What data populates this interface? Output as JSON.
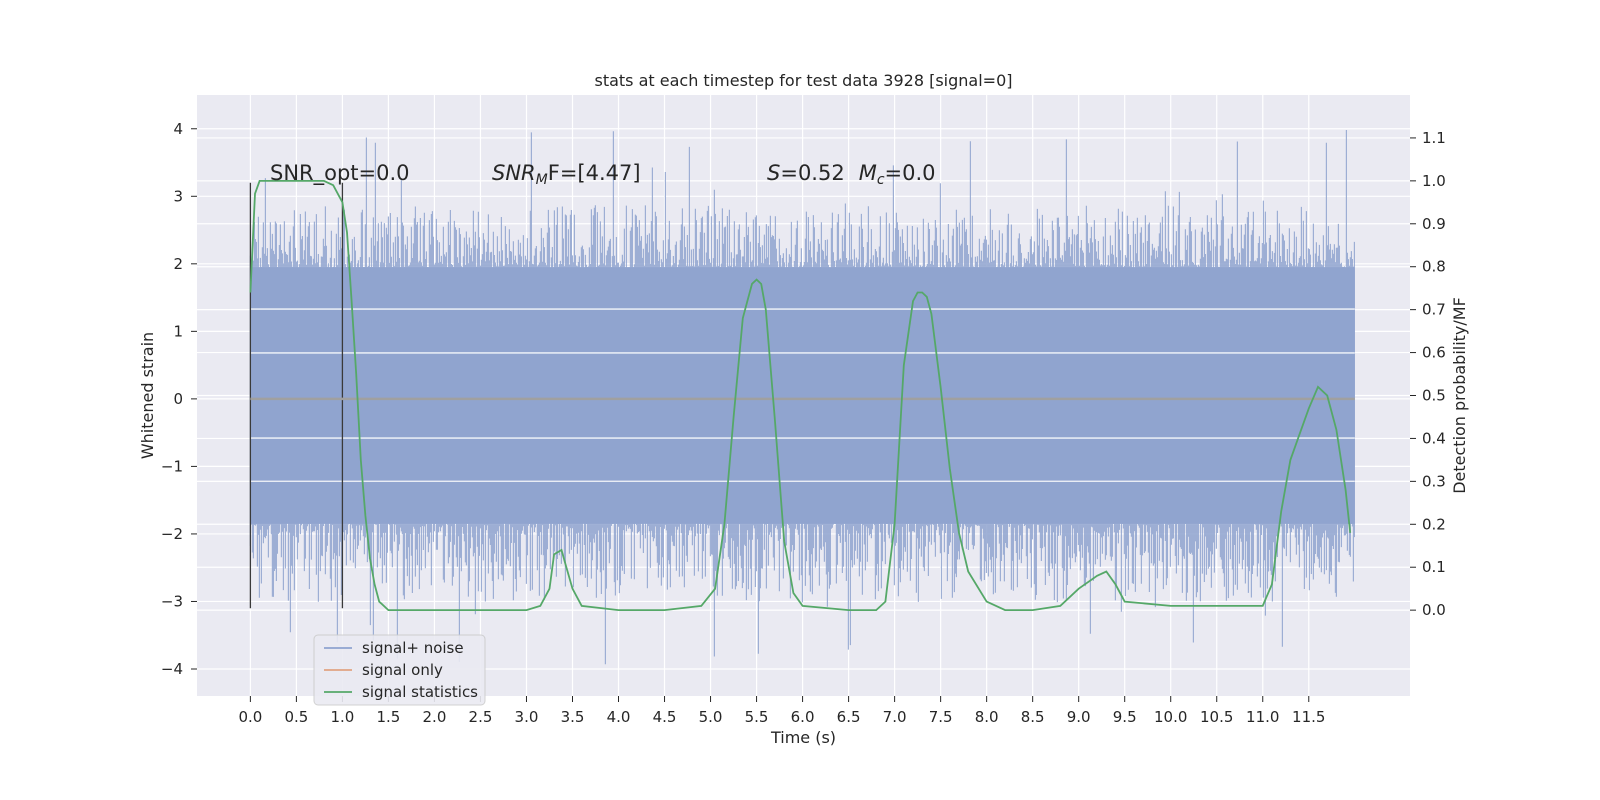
{
  "chart_data": {
    "type": "line",
    "title": "stats at each timestep for test data 3928 [signal=0]",
    "xlabel": "Time (s)",
    "ylabel": "Whitened strain",
    "ylabel_right": "Detection probability/MF",
    "xlim": [
      -0.58,
      12.6
    ],
    "ylim": [
      -4.4,
      4.5
    ],
    "ylim_right": [
      -0.2,
      1.2
    ],
    "x_ticks": [
      0.0,
      0.5,
      1.0,
      1.5,
      2.0,
      2.5,
      3.0,
      3.5,
      4.0,
      4.5,
      5.0,
      5.5,
      6.0,
      6.5,
      7.0,
      7.5,
      8.0,
      8.5,
      9.0,
      9.5,
      10.0,
      10.5,
      11.0,
      11.5
    ],
    "x_tick_labels": [
      "0.0",
      "0.5",
      "1.0",
      "1.5",
      "2.0",
      "2.5",
      "3.0",
      "3.5",
      "4.0",
      "4.5",
      "5.0",
      "5.5",
      "6.0",
      "6.5",
      "7.0",
      "7.5",
      "8.0",
      "8.5",
      "9.0",
      "9.5",
      "10.0",
      "10.5",
      "11.0",
      "11.5"
    ],
    "y_ticks": [
      -4,
      -3,
      -2,
      -1,
      0,
      1,
      2,
      3,
      4
    ],
    "y_tick_labels": [
      "−4",
      "−3",
      "−2",
      "−1",
      "0",
      "1",
      "2",
      "3",
      "4"
    ],
    "y_ticks_right": [
      0.0,
      0.1,
      0.2,
      0.3,
      0.4,
      0.5,
      0.6,
      0.7,
      0.8,
      0.9,
      1.0,
      1.1
    ],
    "y_tick_labels_right": [
      "0.0",
      "0.1",
      "0.2",
      "0.3",
      "0.4",
      "0.5",
      "0.6",
      "0.7",
      "0.8",
      "0.9",
      "1.0",
      "1.1"
    ],
    "grid": true,
    "legend_position": "lower-left",
    "annotations": {
      "snr_opt": "SNR_opt=0.0",
      "snr_mf_main": "SNR",
      "snr_mf_sub": "M",
      "snr_mf_rest": "F=[4.47]",
      "s_main": "S",
      "s_rest": "=0.52",
      "mc_main": "M",
      "mc_sub": "c",
      "mc_rest": "=0.0"
    },
    "noise_x_range": [
      0.0,
      12.0
    ],
    "noise_envelope": {
      "core": [
        -1.85,
        1.95
      ],
      "typical_peak": 2.9,
      "extreme_min": -3.95,
      "extreme_max": 4.1
    },
    "markers": [
      0.0,
      1.0
    ],
    "series": [
      {
        "name": "signal+ noise",
        "color": "#8fa3cf",
        "axis": "left",
        "kind": "noise"
      },
      {
        "name": "signal only",
        "color": "#dd8452",
        "axis": "left",
        "x": [
          0.0,
          12.0
        ],
        "y": [
          0.0,
          0.0
        ]
      },
      {
        "name": "signal statistics",
        "color": "#55a868",
        "axis": "right",
        "x": [
          0.0,
          0.05,
          0.1,
          0.2,
          0.3,
          0.5,
          0.7,
          0.8,
          0.9,
          1.0,
          1.05,
          1.1,
          1.15,
          1.2,
          1.25,
          1.3,
          1.35,
          1.4,
          1.5,
          2.0,
          2.5,
          3.0,
          3.15,
          3.25,
          3.3,
          3.38,
          3.42,
          3.5,
          3.6,
          4.0,
          4.5,
          4.9,
          5.05,
          5.15,
          5.25,
          5.35,
          5.45,
          5.5,
          5.55,
          5.6,
          5.7,
          5.8,
          5.9,
          6.0,
          6.5,
          6.8,
          6.9,
          7.0,
          7.1,
          7.2,
          7.25,
          7.3,
          7.35,
          7.4,
          7.5,
          7.6,
          7.7,
          7.8,
          8.0,
          8.2,
          8.5,
          8.8,
          9.0,
          9.2,
          9.3,
          9.4,
          9.5,
          10.0,
          10.5,
          11.0,
          11.1,
          11.2,
          11.3,
          11.4,
          11.5,
          11.6,
          11.7,
          11.8,
          11.9,
          11.95
        ],
        "y": [
          0.74,
          0.97,
          1.0,
          1.0,
          1.0,
          1.0,
          1.0,
          1.0,
          0.99,
          0.95,
          0.88,
          0.72,
          0.55,
          0.35,
          0.22,
          0.12,
          0.06,
          0.02,
          0.0,
          0.0,
          0.0,
          0.0,
          0.01,
          0.05,
          0.13,
          0.14,
          0.11,
          0.05,
          0.01,
          0.0,
          0.0,
          0.01,
          0.05,
          0.2,
          0.45,
          0.68,
          0.76,
          0.77,
          0.76,
          0.7,
          0.44,
          0.16,
          0.04,
          0.01,
          0.0,
          0.0,
          0.02,
          0.2,
          0.57,
          0.72,
          0.74,
          0.74,
          0.73,
          0.69,
          0.52,
          0.33,
          0.18,
          0.09,
          0.02,
          0.0,
          0.0,
          0.01,
          0.05,
          0.08,
          0.09,
          0.06,
          0.02,
          0.01,
          0.01,
          0.01,
          0.06,
          0.23,
          0.35,
          0.41,
          0.47,
          0.52,
          0.5,
          0.42,
          0.28,
          0.18
        ]
      }
    ]
  }
}
